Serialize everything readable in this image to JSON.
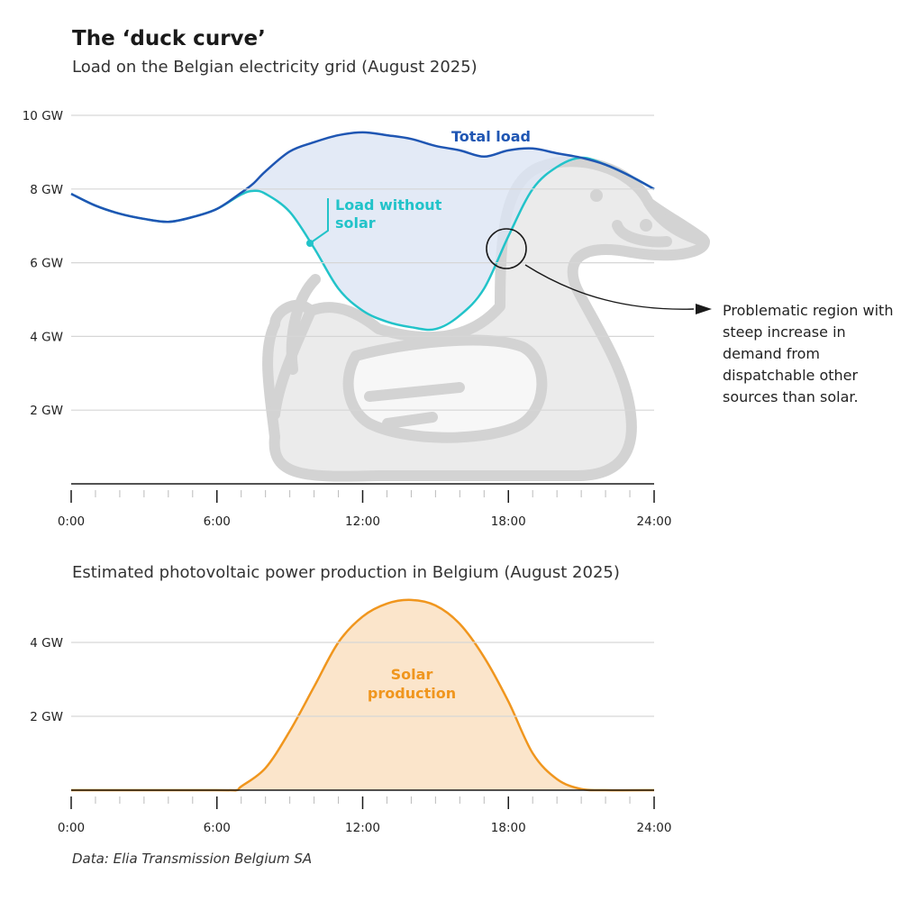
{
  "title": "The ‘duck curve’",
  "subtitle": "Load on the Belgian electricity grid (August 2025)",
  "subtitle2": "Estimated photovoltaic power production in Belgium (August 2025)",
  "source": "Data: Elia Transmission Belgium SA",
  "annotation": "Problematic region with steep increase in demand from dispatchable other sources than solar.",
  "colors": {
    "total": "#1f56b3",
    "without_solar": "#22c3c9",
    "area": "#dce5f4",
    "solar_line": "#f0961e",
    "solar_area": "#fbe5cb",
    "duck": "#d3d3d3"
  },
  "chart_data": [
    {
      "type": "line",
      "title": "Load on the Belgian electricity grid (August 2025)",
      "x_ticks": [
        "0:00",
        "6:00",
        "12:00",
        "18:00",
        "24:00"
      ],
      "y_ticks": [
        "2 GW",
        "4 GW",
        "6 GW",
        "8 GW",
        "10 GW"
      ],
      "xlim": [
        0,
        24
      ],
      "ylim": [
        0,
        10
      ],
      "grid": true,
      "x": [
        0,
        1,
        2,
        3,
        4,
        5,
        6,
        7,
        7.5,
        8,
        9,
        10,
        11,
        12,
        13,
        14,
        15,
        16,
        17,
        18,
        19,
        20,
        21,
        22,
        23,
        24
      ],
      "series": [
        {
          "name": "Total load",
          "values": [
            7.87,
            7.55,
            7.33,
            7.19,
            7.11,
            7.24,
            7.46,
            7.9,
            8.15,
            8.48,
            9.02,
            9.27,
            9.46,
            9.54,
            9.46,
            9.36,
            9.17,
            9.05,
            8.88,
            9.05,
            9.1,
            8.97,
            8.85,
            8.66,
            8.36,
            8.0
          ]
        },
        {
          "name": "Load without solar",
          "values": [
            7.87,
            7.55,
            7.33,
            7.19,
            7.11,
            7.24,
            7.46,
            7.85,
            7.95,
            7.87,
            7.38,
            6.4,
            5.3,
            4.7,
            4.4,
            4.25,
            4.2,
            4.57,
            5.3,
            6.72,
            8.0,
            8.6,
            8.85,
            8.66,
            8.36,
            8.0
          ]
        }
      ]
    },
    {
      "type": "area",
      "title": "Estimated photovoltaic power production in Belgium (August 2025)",
      "x_ticks": [
        "0:00",
        "6:00",
        "12:00",
        "18:00",
        "24:00"
      ],
      "y_ticks": [
        "2 GW",
        "4 GW"
      ],
      "xlim": [
        0,
        24
      ],
      "ylim": [
        0,
        5.2
      ],
      "grid": true,
      "x": [
        0,
        6,
        6.8,
        7,
        8,
        9,
        10,
        11,
        12,
        13,
        14,
        15,
        16,
        17,
        18,
        19,
        20,
        21,
        22,
        24
      ],
      "series": [
        {
          "name": "Solar production",
          "values": [
            0,
            0,
            0,
            0.1,
            0.6,
            1.6,
            2.8,
            4.0,
            4.7,
            5.05,
            5.15,
            5.0,
            4.5,
            3.6,
            2.4,
            1.0,
            0.3,
            0.03,
            0,
            0
          ]
        }
      ]
    }
  ]
}
